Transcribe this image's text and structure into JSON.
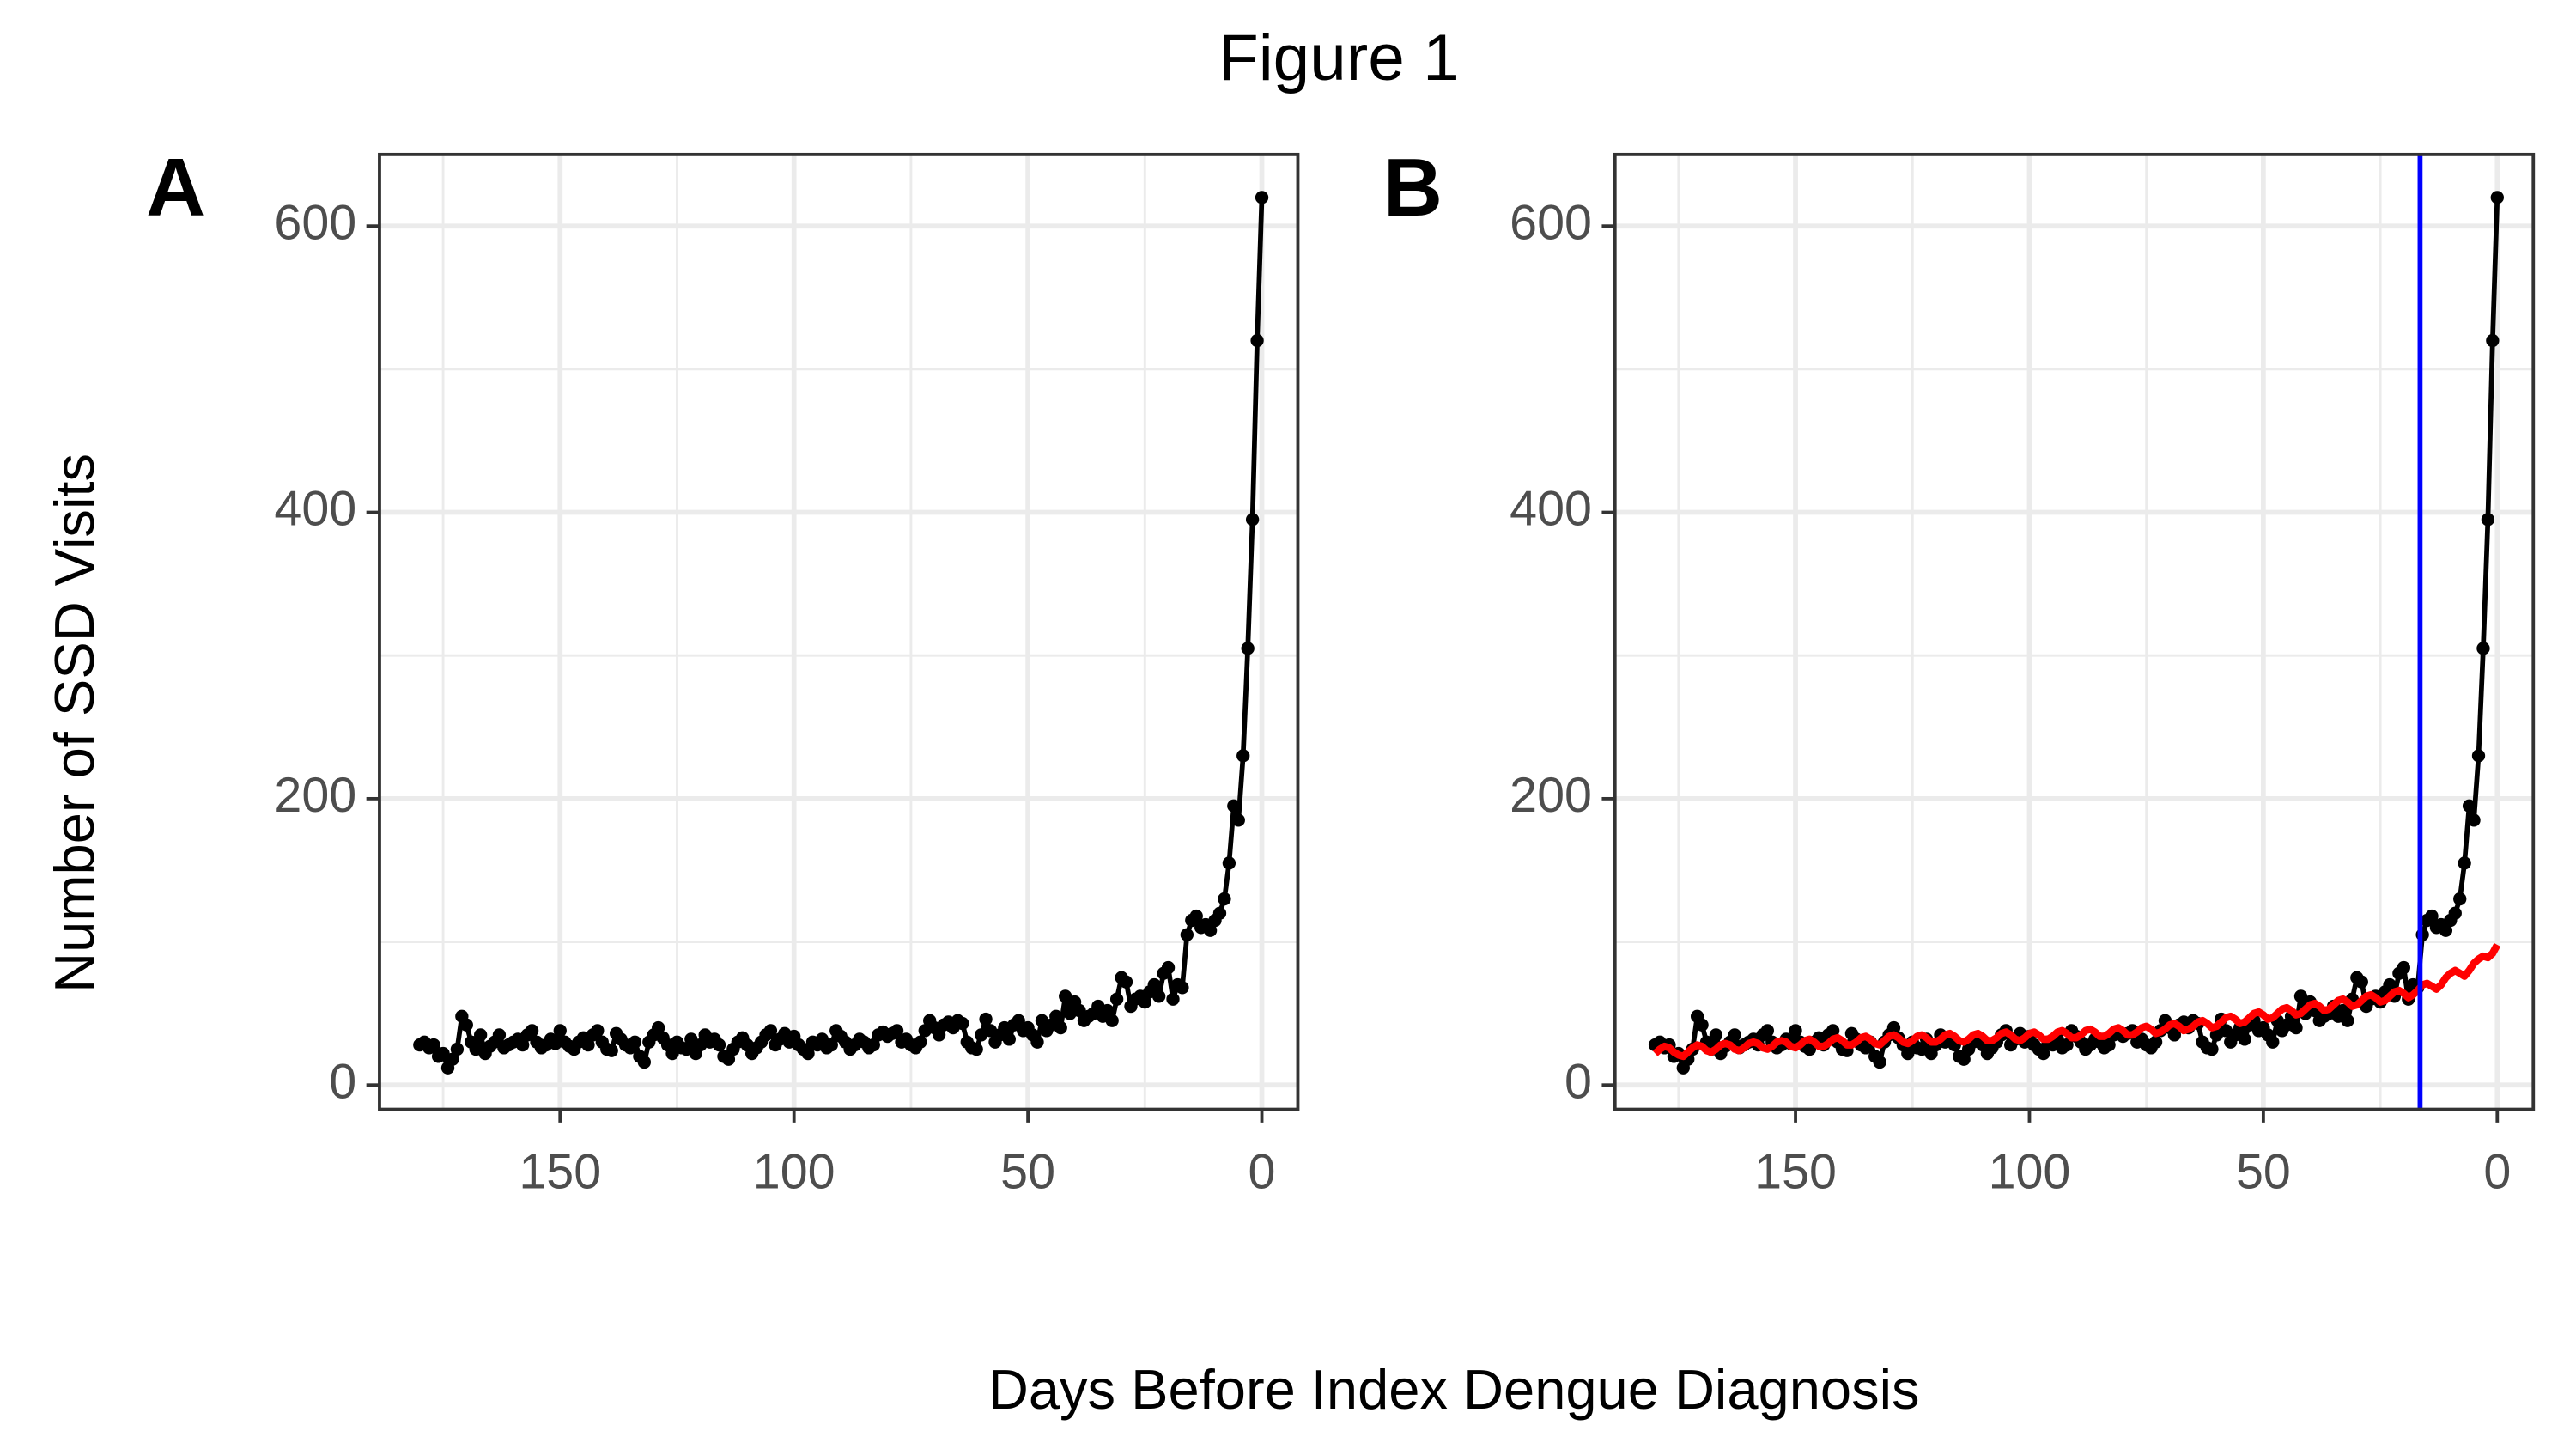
{
  "figure": {
    "title": "Figure 1",
    "x_label": "Days Before Index Dengue Diagnosis",
    "y_label": "Number of SSD Visits"
  },
  "chart_data": [
    {
      "type": "line",
      "panel_label": "A",
      "x": [
        180,
        179,
        178,
        177,
        176,
        175,
        174,
        173,
        172,
        171,
        170,
        169,
        168,
        167,
        166,
        165,
        164,
        163,
        162,
        161,
        160,
        159,
        158,
        157,
        156,
        155,
        154,
        153,
        152,
        151,
        150,
        149,
        148,
        147,
        146,
        145,
        144,
        143,
        142,
        141,
        140,
        139,
        138,
        137,
        136,
        135,
        134,
        133,
        132,
        131,
        130,
        129,
        128,
        127,
        126,
        125,
        124,
        123,
        122,
        121,
        120,
        119,
        118,
        117,
        116,
        115,
        114,
        113,
        112,
        111,
        110,
        109,
        108,
        107,
        106,
        105,
        104,
        103,
        102,
        101,
        100,
        99,
        98,
        97,
        96,
        95,
        94,
        93,
        92,
        91,
        90,
        89,
        88,
        87,
        86,
        85,
        84,
        83,
        82,
        81,
        80,
        79,
        78,
        77,
        76,
        75,
        74,
        73,
        72,
        71,
        70,
        69,
        68,
        67,
        66,
        65,
        64,
        63,
        62,
        61,
        60,
        59,
        58,
        57,
        56,
        55,
        54,
        53,
        52,
        51,
        50,
        49,
        48,
        47,
        46,
        45,
        44,
        43,
        42,
        41,
        40,
        39,
        38,
        37,
        36,
        35,
        34,
        33,
        32,
        31,
        30,
        29,
        28,
        27,
        26,
        25,
        24,
        23,
        22,
        21,
        20,
        19,
        18,
        17,
        16,
        15,
        14,
        13,
        12,
        11,
        10,
        9,
        8,
        7,
        6,
        5,
        4,
        3,
        2,
        1,
        0
      ],
      "series": [
        {
          "color": "#000000",
          "markers": true,
          "values": [
            28,
            30,
            26,
            28,
            20,
            22,
            12,
            18,
            25,
            48,
            42,
            30,
            25,
            35,
            22,
            27,
            30,
            35,
            26,
            28,
            30,
            32,
            28,
            35,
            38,
            30,
            26,
            28,
            32,
            29,
            38,
            30,
            27,
            25,
            30,
            33,
            28,
            35,
            38,
            30,
            25,
            24,
            36,
            32,
            28,
            26,
            30,
            20,
            16,
            30,
            35,
            40,
            33,
            28,
            22,
            30,
            26,
            25,
            32,
            22,
            28,
            35,
            30,
            32,
            28,
            20,
            18,
            25,
            30,
            33,
            28,
            22,
            26,
            30,
            35,
            38,
            28,
            32,
            36,
            30,
            34,
            28,
            25,
            22,
            30,
            28,
            32,
            26,
            28,
            38,
            34,
            30,
            25,
            28,
            32,
            30,
            26,
            28,
            35,
            37,
            34,
            36,
            38,
            30,
            32,
            28,
            26,
            30,
            38,
            45,
            40,
            35,
            42,
            44,
            40,
            45,
            43,
            30,
            26,
            25,
            35,
            46,
            38,
            30,
            35,
            40,
            32,
            42,
            45,
            38,
            40,
            35,
            30,
            45,
            38,
            42,
            48,
            40,
            62,
            50,
            58,
            52,
            45,
            48,
            50,
            55,
            48,
            52,
            45,
            60,
            75,
            72,
            55,
            60,
            62,
            58,
            65,
            70,
            62,
            78,
            82,
            60,
            70,
            68,
            105,
            115,
            118,
            110,
            112,
            108,
            115,
            120,
            130,
            155,
            195,
            185,
            230,
            305,
            395,
            520,
            620
          ]
        }
      ],
      "xlim": [
        188.6,
        -7.7
      ],
      "ylim": [
        -17,
        650
      ],
      "xticks": [
        150,
        100,
        50,
        0
      ],
      "yticks": [
        0,
        200,
        400,
        600
      ],
      "xminor": [
        175,
        125,
        75,
        25
      ],
      "yminor": [
        100,
        300,
        500
      ],
      "grid": true
    },
    {
      "type": "line",
      "panel_label": "B",
      "x": [
        180,
        179,
        178,
        177,
        176,
        175,
        174,
        173,
        172,
        171,
        170,
        169,
        168,
        167,
        166,
        165,
        164,
        163,
        162,
        161,
        160,
        159,
        158,
        157,
        156,
        155,
        154,
        153,
        152,
        151,
        150,
        149,
        148,
        147,
        146,
        145,
        144,
        143,
        142,
        141,
        140,
        139,
        138,
        137,
        136,
        135,
        134,
        133,
        132,
        131,
        130,
        129,
        128,
        127,
        126,
        125,
        124,
        123,
        122,
        121,
        120,
        119,
        118,
        117,
        116,
        115,
        114,
        113,
        112,
        111,
        110,
        109,
        108,
        107,
        106,
        105,
        104,
        103,
        102,
        101,
        100,
        99,
        98,
        97,
        96,
        95,
        94,
        93,
        92,
        91,
        90,
        89,
        88,
        87,
        86,
        85,
        84,
        83,
        82,
        81,
        80,
        79,
        78,
        77,
        76,
        75,
        74,
        73,
        72,
        71,
        70,
        69,
        68,
        67,
        66,
        65,
        64,
        63,
        62,
        61,
        60,
        59,
        58,
        57,
        56,
        55,
        54,
        53,
        52,
        51,
        50,
        49,
        48,
        47,
        46,
        45,
        44,
        43,
        42,
        41,
        40,
        39,
        38,
        37,
        36,
        35,
        34,
        33,
        32,
        31,
        30,
        29,
        28,
        27,
        26,
        25,
        24,
        23,
        22,
        21,
        20,
        19,
        18,
        17,
        16,
        15,
        14,
        13,
        12,
        11,
        10,
        9,
        8,
        7,
        6,
        5,
        4,
        3,
        2,
        1,
        0
      ],
      "series": [
        {
          "color": "#000000",
          "markers": true,
          "values": [
            28,
            30,
            26,
            28,
            20,
            22,
            12,
            18,
            25,
            48,
            42,
            30,
            25,
            35,
            22,
            27,
            30,
            35,
            26,
            28,
            30,
            32,
            28,
            35,
            38,
            30,
            26,
            28,
            32,
            29,
            38,
            30,
            27,
            25,
            30,
            33,
            28,
            35,
            38,
            30,
            25,
            24,
            36,
            32,
            28,
            26,
            30,
            20,
            16,
            30,
            35,
            40,
            33,
            28,
            22,
            30,
            26,
            25,
            32,
            22,
            28,
            35,
            30,
            32,
            28,
            20,
            18,
            25,
            30,
            33,
            28,
            22,
            26,
            30,
            35,
            38,
            28,
            32,
            36,
            30,
            34,
            28,
            25,
            22,
            30,
            28,
            32,
            26,
            28,
            38,
            34,
            30,
            25,
            28,
            32,
            30,
            26,
            28,
            35,
            37,
            34,
            36,
            38,
            30,
            32,
            28,
            26,
            30,
            38,
            45,
            40,
            35,
            42,
            44,
            40,
            45,
            43,
            30,
            26,
            25,
            35,
            46,
            38,
            30,
            35,
            40,
            32,
            42,
            45,
            38,
            40,
            35,
            30,
            45,
            38,
            42,
            48,
            40,
            62,
            50,
            58,
            52,
            45,
            48,
            50,
            55,
            48,
            52,
            45,
            60,
            75,
            72,
            55,
            60,
            62,
            58,
            65,
            70,
            62,
            78,
            82,
            60,
            70,
            68,
            105,
            115,
            118,
            110,
            112,
            108,
            115,
            120,
            130,
            155,
            195,
            185,
            230,
            305,
            395,
            520,
            620
          ]
        },
        {
          "color": "#ff0000",
          "markers": false,
          "values": [
            22,
            25,
            27,
            26,
            23,
            21,
            20,
            23,
            26,
            28,
            27,
            24,
            23,
            25,
            28,
            29,
            28,
            25,
            24,
            26,
            29,
            30,
            29,
            26,
            25,
            27,
            30,
            31,
            30,
            27,
            26,
            28,
            31,
            32,
            30,
            27,
            27,
            29,
            32,
            33,
            31,
            28,
            28,
            30,
            33,
            34,
            32,
            29,
            28,
            31,
            34,
            35,
            33,
            30,
            29,
            31,
            34,
            35,
            33,
            30,
            30,
            32,
            35,
            36,
            34,
            31,
            30,
            32,
            35,
            36,
            34,
            31,
            31,
            33,
            36,
            37,
            35,
            32,
            31,
            33,
            36,
            37,
            35,
            32,
            32,
            34,
            37,
            38,
            36,
            33,
            33,
            35,
            38,
            39,
            37,
            34,
            34,
            36,
            39,
            40,
            38,
            35,
            35,
            37,
            40,
            41,
            39,
            36,
            37,
            39,
            42,
            43,
            41,
            38,
            39,
            41,
            44,
            45,
            43,
            40,
            41,
            44,
            47,
            48,
            46,
            43,
            44,
            47,
            50,
            51,
            49,
            46,
            47,
            50,
            53,
            54,
            52,
            49,
            50,
            53,
            56,
            57,
            55,
            52,
            53,
            56,
            59,
            60,
            58,
            55,
            56,
            59,
            62,
            63,
            61,
            58,
            59,
            62,
            65,
            66,
            64,
            61,
            63,
            66,
            70,
            71,
            69,
            67,
            70,
            75,
            78,
            80,
            78,
            76,
            80,
            85,
            88,
            90,
            89,
            92,
            98
          ]
        }
      ],
      "vline": {
        "x": 16.5,
        "color": "#0000ff"
      },
      "xlim": [
        188.6,
        -7.7
      ],
      "ylim": [
        -17,
        650
      ],
      "xticks": [
        150,
        100,
        50,
        0
      ],
      "yticks": [
        0,
        200,
        400,
        600
      ],
      "xminor": [
        175,
        125,
        75,
        25
      ],
      "yminor": [
        100,
        300,
        500
      ],
      "grid": true
    }
  ]
}
